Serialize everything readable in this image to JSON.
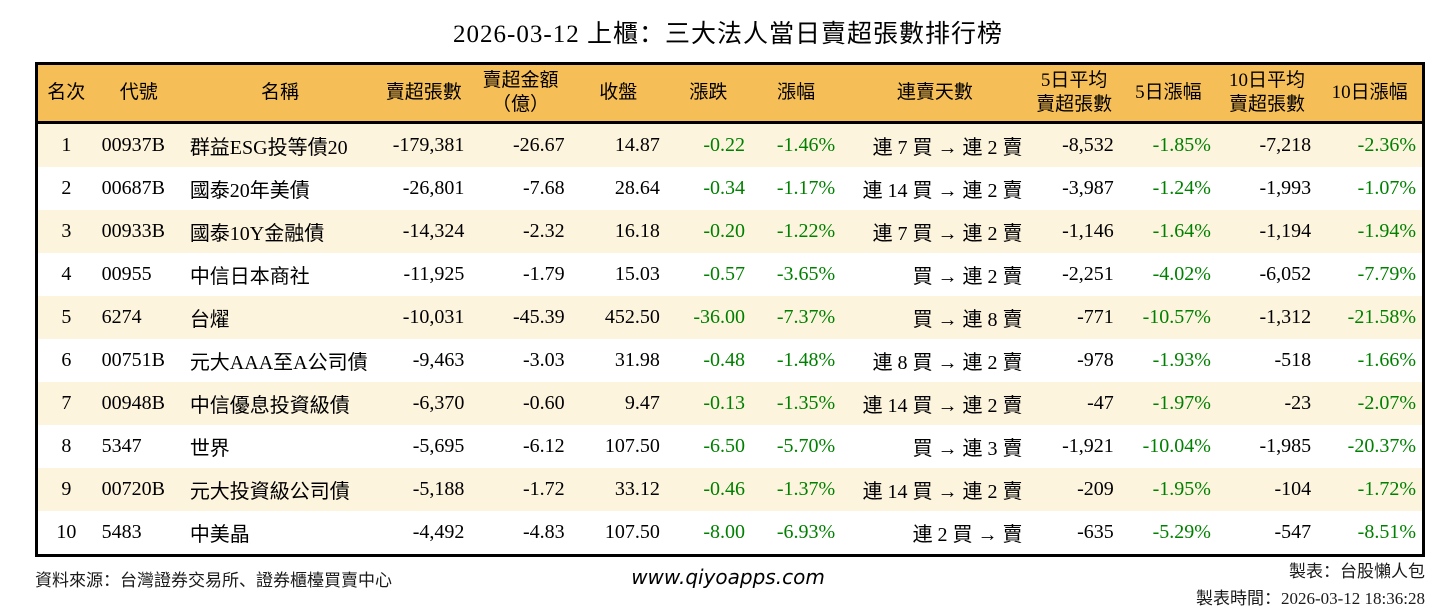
{
  "title": "2026-03-12 上櫃：三大法人當日賣超張數排行榜",
  "colors": {
    "header_bg": "#F6BE56",
    "row_alt_bg": "#FDF4DE",
    "negative_green": "#008000",
    "border_black": "#000000"
  },
  "chart_data": {
    "type": "table",
    "title": "2026-03-12 上櫃：三大法人當日賣超張數排行榜",
    "columns": [
      "名次",
      "代號",
      "名稱",
      "賣超張數",
      "賣超金額\n（億）",
      "收盤",
      "漲跌",
      "漲幅",
      "連賣天數",
      "5日平均\n賣超張數",
      "5日漲幅",
      "10日平均\n賣超張數",
      "10日漲幅"
    ],
    "rows": [
      [
        "1",
        "00937B",
        "群益ESG投等債20",
        "-179,381",
        "-26.67",
        "14.87",
        "-0.22",
        "-1.46%",
        "連 7 買 → 連 2 賣",
        "-8,532",
        "-1.85%",
        "-7,218",
        "-2.36%"
      ],
      [
        "2",
        "00687B",
        "國泰20年美債",
        "-26,801",
        "-7.68",
        "28.64",
        "-0.34",
        "-1.17%",
        "連 14 買 → 連 2 賣",
        "-3,987",
        "-1.24%",
        "-1,993",
        "-1.07%"
      ],
      [
        "3",
        "00933B",
        "國泰10Y金融債",
        "-14,324",
        "-2.32",
        "16.18",
        "-0.20",
        "-1.22%",
        "連 7 買 → 連 2 賣",
        "-1,146",
        "-1.64%",
        "-1,194",
        "-1.94%"
      ],
      [
        "4",
        "00955",
        "中信日本商社",
        "-11,925",
        "-1.79",
        "15.03",
        "-0.57",
        "-3.65%",
        "買 → 連 2 賣",
        "-2,251",
        "-4.02%",
        "-6,052",
        "-7.79%"
      ],
      [
        "5",
        "6274",
        "台燿",
        "-10,031",
        "-45.39",
        "452.50",
        "-36.00",
        "-7.37%",
        "買 → 連 8 賣",
        "-771",
        "-10.57%",
        "-1,312",
        "-21.58%"
      ],
      [
        "6",
        "00751B",
        "元大AAA至A公司債",
        "-9,463",
        "-3.03",
        "31.98",
        "-0.48",
        "-1.48%",
        "連 8 買 → 連 2 賣",
        "-978",
        "-1.93%",
        "-518",
        "-1.66%"
      ],
      [
        "7",
        "00948B",
        "中信優息投資級債",
        "-6,370",
        "-0.60",
        "9.47",
        "-0.13",
        "-1.35%",
        "連 14 買 → 連 2 賣",
        "-47",
        "-1.97%",
        "-23",
        "-2.07%"
      ],
      [
        "8",
        "5347",
        "世界",
        "-5,695",
        "-6.12",
        "107.50",
        "-6.50",
        "-5.70%",
        "買 → 連 3 賣",
        "-1,921",
        "-10.04%",
        "-1,985",
        "-20.37%"
      ],
      [
        "9",
        "00720B",
        "元大投資級公司債",
        "-5,188",
        "-1.72",
        "33.12",
        "-0.46",
        "-1.37%",
        "連 14 買 → 連 2 賣",
        "-209",
        "-1.95%",
        "-104",
        "-1.72%"
      ],
      [
        "10",
        "5483",
        "中美晶",
        "-4,492",
        "-4.83",
        "107.50",
        "-8.00",
        "-6.93%",
        "連 2 買 → 賣",
        "-635",
        "-5.29%",
        "-547",
        "-8.51%"
      ]
    ]
  },
  "footer": {
    "source": "資料來源：台灣證券交易所、證券櫃檯買賣中心",
    "website": "www.qiyoapps.com",
    "author": "製表：台股懶人包",
    "timestamp": "製表時間：2026-03-12 18:36:28"
  }
}
